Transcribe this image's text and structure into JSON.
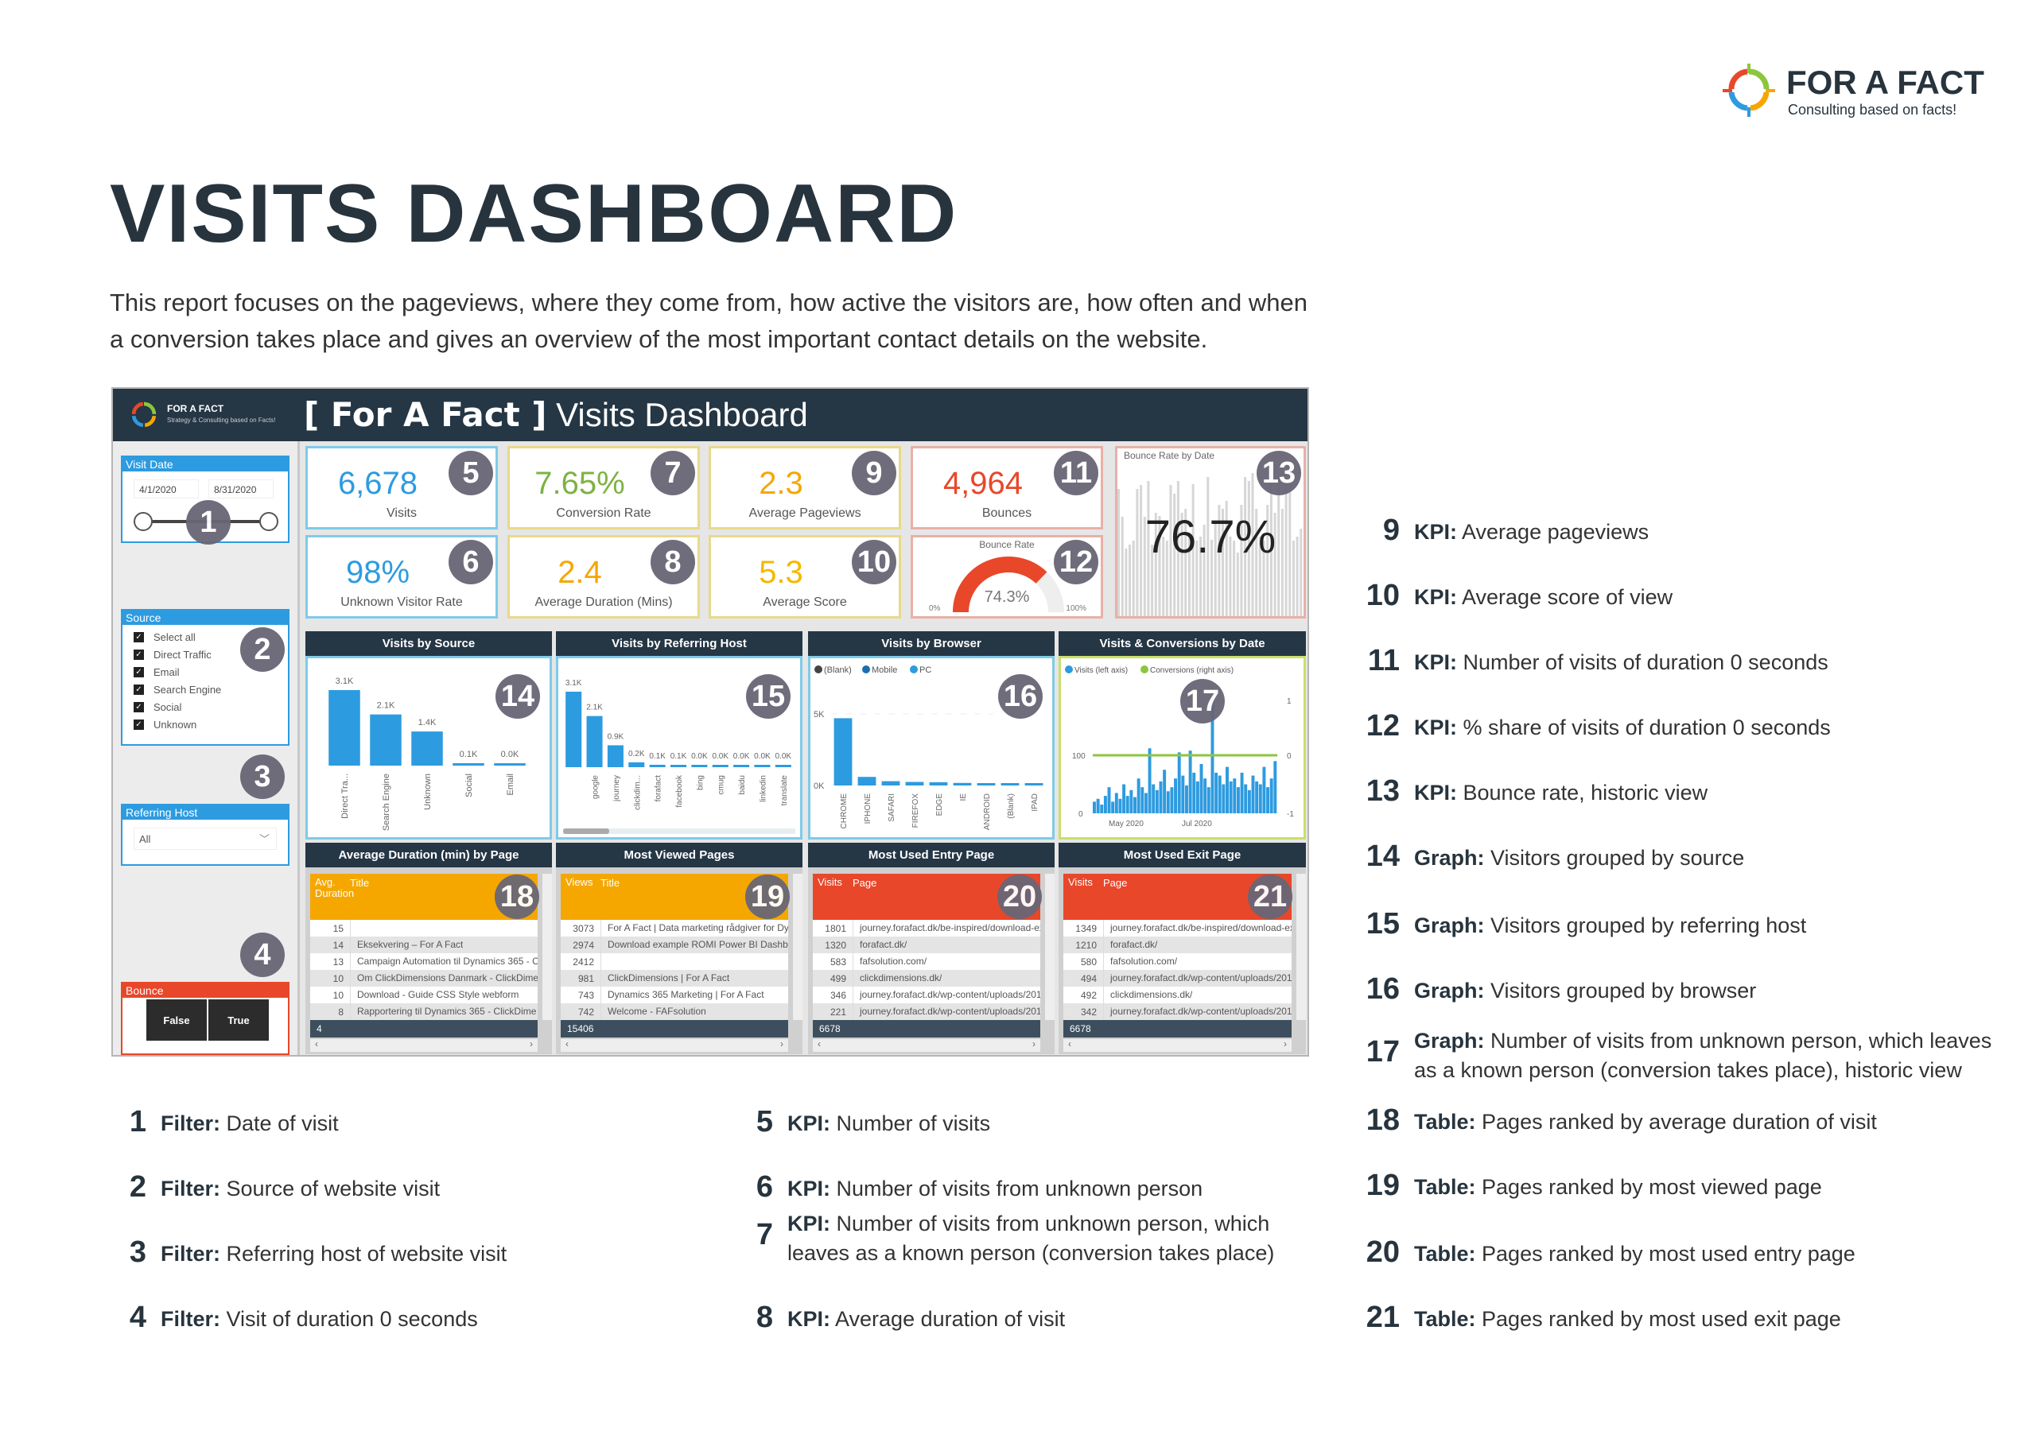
{
  "logo": {
    "name": "FOR A FACT",
    "tagline": "Consulting based on facts!"
  },
  "title": "VISITS DASHBOARD",
  "intro": "This report focuses on the pageviews, where they come from, how active the visitors are, how often and when a conversion takes place and gives an overview of the most important contact details on the website.",
  "dashboard": {
    "brand": "FOR A FACT",
    "brand_sub": "Strategy & Consulting based on Facts!",
    "title_bold": "[ For A Fact ]",
    "title_rest": " Visits Dashboard",
    "visit_date": {
      "label": "Visit Date",
      "from": "4/1/2020",
      "to": "8/31/2020"
    },
    "source": {
      "label": "Source",
      "items": [
        "Select all",
        "Direct Traffic",
        "Email",
        "Search Engine",
        "Social",
        "Unknown"
      ]
    },
    "referring_host": {
      "label": "Referring Host",
      "value": "All"
    },
    "bounce": {
      "label": "Bounce",
      "options": [
        "False",
        "True"
      ]
    },
    "kpis": {
      "visits": {
        "value": "6,678",
        "label": "Visits"
      },
      "unknown_rate": {
        "value": "98%",
        "label": "Unknown Visitor Rate"
      },
      "conversion_rate": {
        "value": "7.65%",
        "label": "Conversion Rate"
      },
      "avg_duration": {
        "value": "2.4",
        "label": "Average Duration (Mins)"
      },
      "avg_pageviews": {
        "value": "2.3",
        "label": "Average Pageviews"
      },
      "avg_score": {
        "value": "5.3",
        "label": "Average Score"
      },
      "bounces": {
        "value": "4,964",
        "label": "Bounces"
      },
      "bounce_rate": {
        "title": "Bounce Rate",
        "value": "74.3%",
        "fraction": 0.743,
        "min": "0%",
        "max": "100%"
      },
      "bounce_rate_by_date": {
        "title": "Bounce Rate by Date",
        "value": "76.7%"
      }
    },
    "tables": [
      {
        "title": "Average Duration (min) by Page",
        "col1": "Avg. Duration",
        "col2": "Title",
        "color": "#f5a700",
        "rows": [
          [
            "15",
            ""
          ],
          [
            "14",
            "Eksekvering – For A Fact"
          ],
          [
            "13",
            "Campaign Automation til Dynamics 365 - C"
          ],
          [
            "10",
            "Om ClickDimensions Danmark - ClickDime"
          ],
          [
            "10",
            "Download - Guide CSS Style webform"
          ],
          [
            "8",
            "Rapportering til Dynamics 365 - ClickDime"
          ]
        ],
        "total": "4"
      },
      {
        "title": "Most Viewed Pages",
        "col1": "Views",
        "col2": "Title",
        "color": "#f5a700",
        "rows": [
          [
            "3073",
            "For A Fact | Data marketing rådgiver for Dyr"
          ],
          [
            "2974",
            "Download example ROMI Power BI Dashboard"
          ],
          [
            "2412",
            ""
          ],
          [
            "981",
            "ClickDimensions | For A Fact"
          ],
          [
            "743",
            "Dynamics 365 Marketing | For A Fact"
          ],
          [
            "742",
            "Welcome - FAFsolution"
          ]
        ],
        "total": "15406"
      },
      {
        "title": "Most Used Entry Page",
        "col1": "Visits",
        "col2": "Page",
        "color": "#e8472a",
        "rows": [
          [
            "1801",
            "journey.forafact.dk/be-inspired/download-exa"
          ],
          [
            "1320",
            "forafact.dk/"
          ],
          [
            "583",
            "fafsolution.com/"
          ],
          [
            "499",
            "clickdimensions.dk/"
          ],
          [
            "346",
            "journey.forafact.dk/wp-content/uploads/2019"
          ],
          [
            "221",
            "journey.forafact.dk/wp-content/uploads/2019"
          ]
        ],
        "total": "6678"
      },
      {
        "title": "Most Used Exit Page",
        "col1": "Visits",
        "col2": "Page",
        "color": "#e8472a",
        "rows": [
          [
            "1349",
            "journey.forafact.dk/be-inspired/download-exa"
          ],
          [
            "1210",
            "forafact.dk/"
          ],
          [
            "580",
            "fafsolution.com/"
          ],
          [
            "494",
            "journey.forafact.dk/wp-content/uploads/2019"
          ],
          [
            "492",
            "clickdimensions.dk/"
          ],
          [
            "342",
            "journey.forafact.dk/wp-content/uploads/2019"
          ]
        ],
        "total": "6678"
      }
    ],
    "badges": [
      "1",
      "2",
      "3",
      "4",
      "5",
      "6",
      "7",
      "8",
      "9",
      "10",
      "11",
      "12",
      "13",
      "14",
      "15",
      "16",
      "17",
      "18",
      "19",
      "20",
      "21"
    ]
  },
  "chart_data": [
    {
      "type": "bar",
      "title": "Visits by Source",
      "categories": [
        "Direct Tra...",
        "Search Engine",
        "Unknown",
        "Social",
        "Email"
      ],
      "values": [
        3100,
        2100,
        1400,
        100,
        20
      ],
      "labels": [
        "3.1K",
        "2.1K",
        "1.4K",
        "0.1K",
        "0.0K"
      ],
      "color": "#2d9be0"
    },
    {
      "type": "bar",
      "title": "Visits by Referring Host",
      "categories": [
        "",
        "google",
        "journey",
        "clickdim...",
        "forafact",
        "facebook",
        "bing",
        "cmug",
        "baidu",
        "linkedin",
        "translate"
      ],
      "values": [
        3100,
        2100,
        900,
        200,
        100,
        60,
        20,
        20,
        20,
        20,
        20
      ],
      "labels": [
        "3.1K",
        "2.1K",
        "0.9K",
        "0.2K",
        "0.1K",
        "0.1K",
        "0.0K",
        "0.0K",
        "0.0K",
        "0.0K",
        "0.0K"
      ],
      "color": "#2d9be0"
    },
    {
      "type": "bar",
      "title": "Visits by Browser",
      "legend": [
        "(Blank)",
        "Mobile",
        "PC"
      ],
      "legend_colors": [
        "#444444",
        "#1a6fb0",
        "#2d9be0"
      ],
      "yticks": [
        "5K",
        "0K"
      ],
      "ymax": 5000,
      "categories": [
        "CHROME",
        "IPHONE",
        "SAFARI",
        "FIREFOX",
        "EDGE",
        "IE",
        "ANDROID",
        "(Blank)",
        "IPAD"
      ],
      "values": [
        4700,
        600,
        300,
        250,
        230,
        180,
        160,
        90,
        30
      ]
    },
    {
      "type": "line",
      "title": "Visits & Conversions by Date",
      "legend": [
        "Visits (left axis)",
        "Conversions (right axis)"
      ],
      "legend_colors": [
        "#2d9be0",
        "#8cc63f"
      ],
      "yticks_left": [
        "0",
        "100"
      ],
      "yticks_right": [
        "-1",
        "0",
        "1"
      ],
      "xticks": [
        "May 2020",
        "Jul 2020"
      ],
      "ymax_left": 200,
      "conversions": 0,
      "visits": [
        20,
        25,
        15,
        30,
        45,
        20,
        35,
        25,
        50,
        30,
        40,
        28,
        60,
        45,
        35,
        112,
        50,
        40,
        55,
        75,
        38,
        45,
        60,
        105,
        65,
        48,
        108,
        70,
        55,
        85,
        60,
        45,
        220,
        70,
        65,
        50,
        80,
        55,
        60,
        45,
        70,
        50,
        40,
        65,
        55,
        50,
        80,
        45,
        60,
        90
      ]
    }
  ],
  "legend_items": [
    {
      "num": "1",
      "kind": "Filter:",
      "text": "Date of visit"
    },
    {
      "num": "2",
      "kind": "Filter:",
      "text": "Source of website visit"
    },
    {
      "num": "3",
      "kind": "Filter:",
      "text": "Referring host of website visit"
    },
    {
      "num": "4",
      "kind": "Filter:",
      "text": "Visit of duration 0 seconds"
    },
    {
      "num": "5",
      "kind": "KPI:",
      "text": "Number of visits"
    },
    {
      "num": "6",
      "kind": "KPI:",
      "text": "Number of visits from unknown person"
    },
    {
      "num": "7",
      "kind": "KPI:",
      "text": "Number of visits from unknown person, which",
      "text2": "leaves as a known person (conversion takes place)"
    },
    {
      "num": "8",
      "kind": "KPI:",
      "text": "Average duration of visit"
    },
    {
      "num": "9",
      "kind": "KPI:",
      "text": "Average pageviews"
    },
    {
      "num": "10",
      "kind": "KPI:",
      "text": "Average score of view"
    },
    {
      "num": "11",
      "kind": "KPI:",
      "text": "Number of visits of duration 0 seconds"
    },
    {
      "num": "12",
      "kind": "KPI:",
      "text": "% share of visits of duration 0 seconds"
    },
    {
      "num": "13",
      "kind": "KPI:",
      "text": "Bounce rate, historic view"
    },
    {
      "num": "14",
      "kind": "Graph:",
      "text": "Visitors grouped by source"
    },
    {
      "num": "15",
      "kind": "Graph:",
      "text": "Visitors grouped by referring host"
    },
    {
      "num": "16",
      "kind": "Graph:",
      "text": "Visitors grouped by browser"
    },
    {
      "num": "17",
      "kind": "Graph:",
      "text": "Number of visits from unknown person, which leaves",
      "text2": "as a known person (conversion takes place), historic view"
    },
    {
      "num": "18",
      "kind": "Table:",
      "text": "Pages ranked by average duration of visit"
    },
    {
      "num": "19",
      "kind": "Table:",
      "text": "Pages ranked by most viewed page"
    },
    {
      "num": "20",
      "kind": "Table:",
      "text": "Pages ranked by most used entry page"
    },
    {
      "num": "21",
      "kind": "Table:",
      "text": "Pages ranked by most used exit page"
    }
  ]
}
